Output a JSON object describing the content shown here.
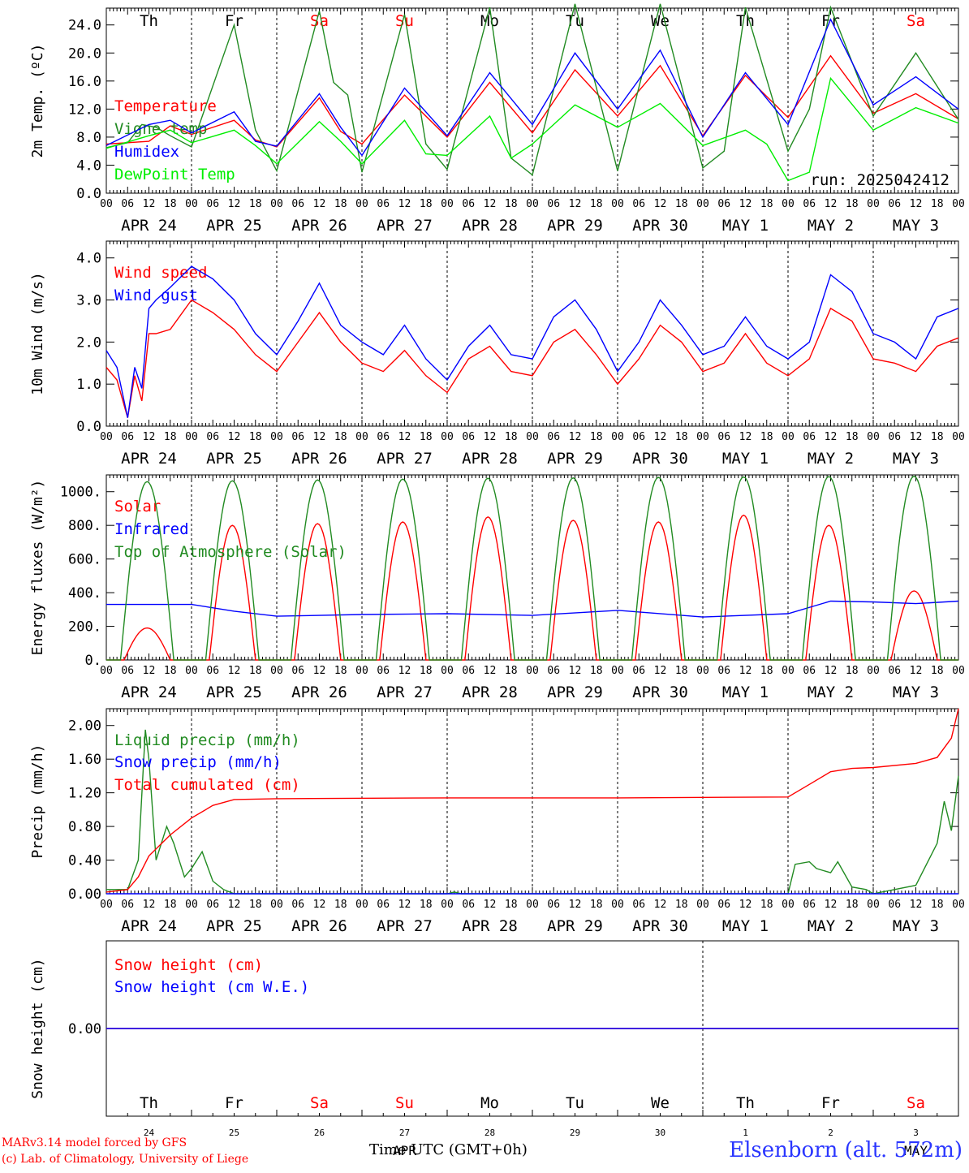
{
  "chart_data": [
    {
      "type": "line",
      "ylabel": "2m Temp. (ºC)",
      "ylim": [
        0,
        26.4
      ],
      "yticks": [
        "0.0",
        "4.0",
        "8.0",
        "12.0",
        "16.0",
        "20.0",
        "24.0"
      ],
      "ytick_values": [
        0,
        4,
        8,
        12,
        16,
        20,
        24
      ],
      "annotation": "run: 2025042412",
      "weekdays": [
        "Th",
        "Fr",
        "Sa",
        "Su",
        "Mo",
        "Tu",
        "We",
        "Th",
        "Fr",
        "Sa"
      ],
      "series": [
        {
          "name": "Temperature",
          "color": "#ff0000",
          "x": [
            0,
            12,
            18,
            24,
            36,
            42,
            48,
            60,
            66,
            72,
            84,
            96,
            108,
            120,
            132,
            144,
            156,
            168,
            180,
            192,
            204,
            216,
            228,
            240
          ],
          "y": [
            7,
            7.4,
            9.6,
            8.4,
            10.4,
            7.6,
            6.6,
            13.6,
            8.8,
            7,
            14,
            8,
            15.8,
            8.6,
            17.6,
            11,
            18.2,
            8.2,
            16.8,
            10.8,
            19.6,
            11.4,
            14.2,
            10.6
          ]
        },
        {
          "name": "Vigne temp",
          "color": "#228b22",
          "x": [
            0,
            6,
            10,
            14,
            18,
            24,
            36,
            42,
            48,
            60,
            64,
            68,
            72,
            84,
            90,
            96,
            108,
            114,
            120,
            132,
            144,
            156,
            168,
            174,
            180,
            192,
            198,
            204,
            216,
            228,
            240
          ],
          "y": [
            6.5,
            7.2,
            9.8,
            9.4,
            8.2,
            6.6,
            24,
            9,
            3.2,
            26,
            15.8,
            14,
            3,
            25.5,
            7,
            3.4,
            26.5,
            5,
            2.6,
            27,
            3.2,
            27,
            3.6,
            6,
            26.5,
            6,
            12,
            26.5,
            11,
            20,
            10.5
          ]
        },
        {
          "name": "Humidex",
          "color": "#0000ff",
          "x": [
            0,
            12,
            18,
            24,
            36,
            42,
            48,
            60,
            66,
            72,
            84,
            96,
            108,
            120,
            132,
            144,
            156,
            168,
            180,
            192,
            204,
            216,
            228,
            240
          ],
          "y": [
            6.8,
            9.8,
            10.4,
            8.6,
            11.6,
            7.4,
            6.7,
            14.2,
            9.4,
            5.4,
            15,
            8.2,
            17.2,
            9.8,
            20,
            12,
            20.4,
            8,
            17.2,
            9.8,
            24.8,
            12.6,
            16.6,
            12
          ]
        },
        {
          "name": "DewPoint Temp",
          "color": "#00ee00",
          "x": [
            0,
            12,
            18,
            24,
            36,
            42,
            48,
            60,
            66,
            72,
            84,
            90,
            96,
            108,
            114,
            120,
            132,
            144,
            156,
            168,
            180,
            186,
            192,
            198,
            204,
            216,
            228,
            240
          ],
          "y": [
            6.4,
            8.2,
            9,
            7.2,
            9,
            6.8,
            4.2,
            10.2,
            7.4,
            4.2,
            10.4,
            5.6,
            5.4,
            11,
            5,
            7,
            12.6,
            9.4,
            12.8,
            6.8,
            9,
            7,
            1.8,
            3,
            16.4,
            9,
            12.2,
            10
          ]
        }
      ]
    },
    {
      "type": "line",
      "ylabel": "10m Wind (m/s)",
      "ylim": [
        0,
        4.4
      ],
      "yticks": [
        "0.0",
        "1.0",
        "2.0",
        "3.0",
        "4.0"
      ],
      "ytick_values": [
        0,
        1,
        2,
        3,
        4
      ],
      "series": [
        {
          "name": "Wind speed",
          "color": "#ff0000",
          "x": [
            0,
            3,
            6,
            8,
            10,
            12,
            14,
            18,
            24,
            30,
            36,
            42,
            48,
            54,
            60,
            66,
            72,
            78,
            84,
            90,
            96,
            102,
            108,
            114,
            120,
            126,
            132,
            138,
            144,
            150,
            156,
            162,
            168,
            174,
            180,
            186,
            192,
            198,
            204,
            210,
            216,
            222,
            228,
            234,
            240
          ],
          "y": [
            1.4,
            1.1,
            0.2,
            1.2,
            0.6,
            2.2,
            2.2,
            2.3,
            3,
            2.7,
            2.3,
            1.7,
            1.3,
            2,
            2.7,
            2,
            1.5,
            1.3,
            1.8,
            1.2,
            0.8,
            1.6,
            1.9,
            1.3,
            1.2,
            2,
            2.3,
            1.7,
            1,
            1.6,
            2.4,
            2,
            1.3,
            1.5,
            2.2,
            1.5,
            1.2,
            1.6,
            2.8,
            2.5,
            1.6,
            1.5,
            1.3,
            1.9,
            2.1
          ]
        },
        {
          "name": "Wind gust",
          "color": "#0000ff",
          "x": [
            0,
            3,
            6,
            8,
            10,
            12,
            14,
            18,
            24,
            30,
            36,
            42,
            48,
            54,
            60,
            66,
            72,
            78,
            84,
            90,
            96,
            102,
            108,
            114,
            120,
            126,
            132,
            138,
            144,
            150,
            156,
            162,
            168,
            174,
            180,
            186,
            192,
            198,
            204,
            210,
            216,
            222,
            228,
            234,
            240
          ],
          "y": [
            1.8,
            1.4,
            0.2,
            1.4,
            0.9,
            2.8,
            3,
            3.3,
            3.8,
            3.5,
            3,
            2.2,
            1.7,
            2.5,
            3.4,
            2.4,
            2,
            1.7,
            2.4,
            1.6,
            1.1,
            1.9,
            2.4,
            1.7,
            1.6,
            2.6,
            3,
            2.3,
            1.3,
            2,
            3,
            2.4,
            1.7,
            1.9,
            2.6,
            1.9,
            1.6,
            2,
            3.6,
            3.2,
            2.2,
            2,
            1.6,
            2.6,
            2.8
          ]
        }
      ]
    },
    {
      "type": "line",
      "ylabel": "Energy fluxes (W/m²)",
      "ylim": [
        0,
        1100
      ],
      "yticks": [
        "0.",
        "200.",
        "400.",
        "600.",
        "800.",
        "1000."
      ],
      "ytick_values": [
        0,
        200,
        400,
        600,
        800,
        1000
      ],
      "series": [
        {
          "name": "Solar",
          "color": "#ff0000",
          "days": [
            0,
            1,
            2,
            3,
            4,
            5,
            6,
            7,
            8,
            9
          ],
          "peaks": [
            190,
            800,
            810,
            820,
            850,
            830,
            820,
            860,
            800,
            410
          ]
        },
        {
          "name": "Infrared",
          "color": "#0000ff",
          "x": [
            0,
            24,
            36,
            48,
            72,
            96,
            120,
            144,
            168,
            192,
            204,
            216,
            228,
            240
          ],
          "y": [
            330,
            330,
            290,
            260,
            270,
            275,
            265,
            295,
            255,
            275,
            350,
            345,
            335,
            350
          ]
        },
        {
          "name": "Top of Atmosphere (Solar)",
          "color": "#228b22",
          "days": [
            0,
            1,
            2,
            3,
            4,
            5,
            6,
            7,
            8,
            9
          ],
          "peaks": [
            1060,
            1065,
            1070,
            1075,
            1080,
            1082,
            1085,
            1088,
            1090,
            1092
          ]
        }
      ]
    },
    {
      "type": "line",
      "ylabel": "Precip (mm/h)",
      "ylim": [
        0,
        2.2
      ],
      "yticks": [
        "0.00",
        "0.40",
        "0.80",
        "1.20",
        "1.60",
        "2.00"
      ],
      "ytick_values": [
        0,
        0.4,
        0.8,
        1.2,
        1.6,
        2.0
      ],
      "series": [
        {
          "name": "Liquid precip (mm/h)",
          "color": "#228b22",
          "x": [
            0,
            6,
            9,
            11,
            12,
            14,
            17,
            19,
            22,
            24,
            27,
            30,
            33,
            36,
            48,
            96,
            98,
            100,
            192,
            194,
            198,
            200,
            204,
            206,
            210,
            214,
            216,
            228,
            234,
            236,
            238,
            240
          ],
          "y": [
            0.05,
            0.05,
            0.4,
            1.95,
            1.6,
            0.4,
            0.8,
            0.6,
            0.2,
            0.3,
            0.5,
            0.15,
            0.05,
            0,
            0,
            0,
            0.02,
            0,
            0,
            0.35,
            0.38,
            0.3,
            0.25,
            0.38,
            0.08,
            0.05,
            0,
            0.1,
            0.6,
            1.1,
            0.75,
            1.4
          ]
        },
        {
          "name": "Snow precip (mm/h)",
          "color": "#0000ff",
          "x": [
            0,
            240
          ],
          "y": [
            0,
            0
          ]
        },
        {
          "name": "Total cumulated (cm)",
          "color": "#ff0000",
          "x": [
            0,
            6,
            9,
            12,
            18,
            24,
            30,
            36,
            48,
            96,
            144,
            192,
            198,
            204,
            210,
            216,
            228,
            234,
            238,
            240
          ],
          "y": [
            0.02,
            0.05,
            0.2,
            0.45,
            0.7,
            0.9,
            1.05,
            1.12,
            1.13,
            1.14,
            1.14,
            1.15,
            1.3,
            1.45,
            1.49,
            1.5,
            1.55,
            1.62,
            1.85,
            2.2
          ]
        }
      ]
    },
    {
      "type": "line",
      "ylabel": "Snow height (cm)",
      "ylim": [
        -1,
        1
      ],
      "yticks": [
        "0.00"
      ],
      "ytick_values": [
        0
      ],
      "series": [
        {
          "name": "Snow height (cm)",
          "color": "#ff0000",
          "x": [
            0,
            240
          ],
          "y": [
            0,
            0
          ]
        },
        {
          "name": "Snow height (cm W.E.)",
          "color": "#0000ff",
          "x": [
            0,
            240
          ],
          "y": [
            0,
            0
          ]
        }
      ],
      "weekdays": [
        "Th",
        "Fr",
        "Sa",
        "Su",
        "Mo",
        "Tu",
        "We",
        "Th",
        "Fr",
        "Sa"
      ],
      "daynums": [
        "24",
        "25",
        "26",
        "27",
        "28",
        "29",
        "30",
        "1",
        "2",
        "3"
      ],
      "month_labels": [
        "APR",
        "MAY"
      ]
    }
  ],
  "x_axis": {
    "hour_ticks": [
      "00",
      "06",
      "12",
      "18"
    ],
    "end_tick": "00",
    "date_labels": [
      "APR 24",
      "APR 25",
      "APR 26",
      "APR 27",
      "APR 28",
      "APR 29",
      "APR 30",
      "MAY  1",
      "MAY  2",
      "MAY  3"
    ],
    "title": "Time UTC (GMT+0h)"
  },
  "weekend_days": [
    "Sa",
    "Su"
  ],
  "footer": {
    "line1": "MARv3.14 model forced by GFS",
    "line2": "(c) Lab. of Climatology, University of Liege",
    "station": "Elsenborn (alt. 572m)"
  }
}
